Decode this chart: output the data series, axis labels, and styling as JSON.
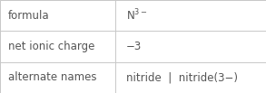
{
  "rows": [
    {
      "label": "formula",
      "value_parts": [
        {
          "text": "N",
          "style": "normal"
        },
        {
          "text": "3−",
          "style": "superscript"
        }
      ],
      "value_raw": "N^{3-}"
    },
    {
      "label": "net ionic charge",
      "value_parts": [
        {
          "text": "−3",
          "style": "normal"
        }
      ],
      "value_raw": "−3"
    },
    {
      "label": "alternate names",
      "value_parts": [
        {
          "text": "nitride  |  nitride(3−)",
          "style": "normal"
        }
      ],
      "value_raw": "nitride  |  nitride(3−)"
    }
  ],
  "col_split": 0.435,
  "border_color": "#c8c8c8",
  "bg_color": "#f8f8f8",
  "cell_bg": "#ffffff",
  "text_color": "#555555",
  "label_fontsize": 8.5,
  "value_fontsize": 8.5,
  "bold_value_rows": []
}
